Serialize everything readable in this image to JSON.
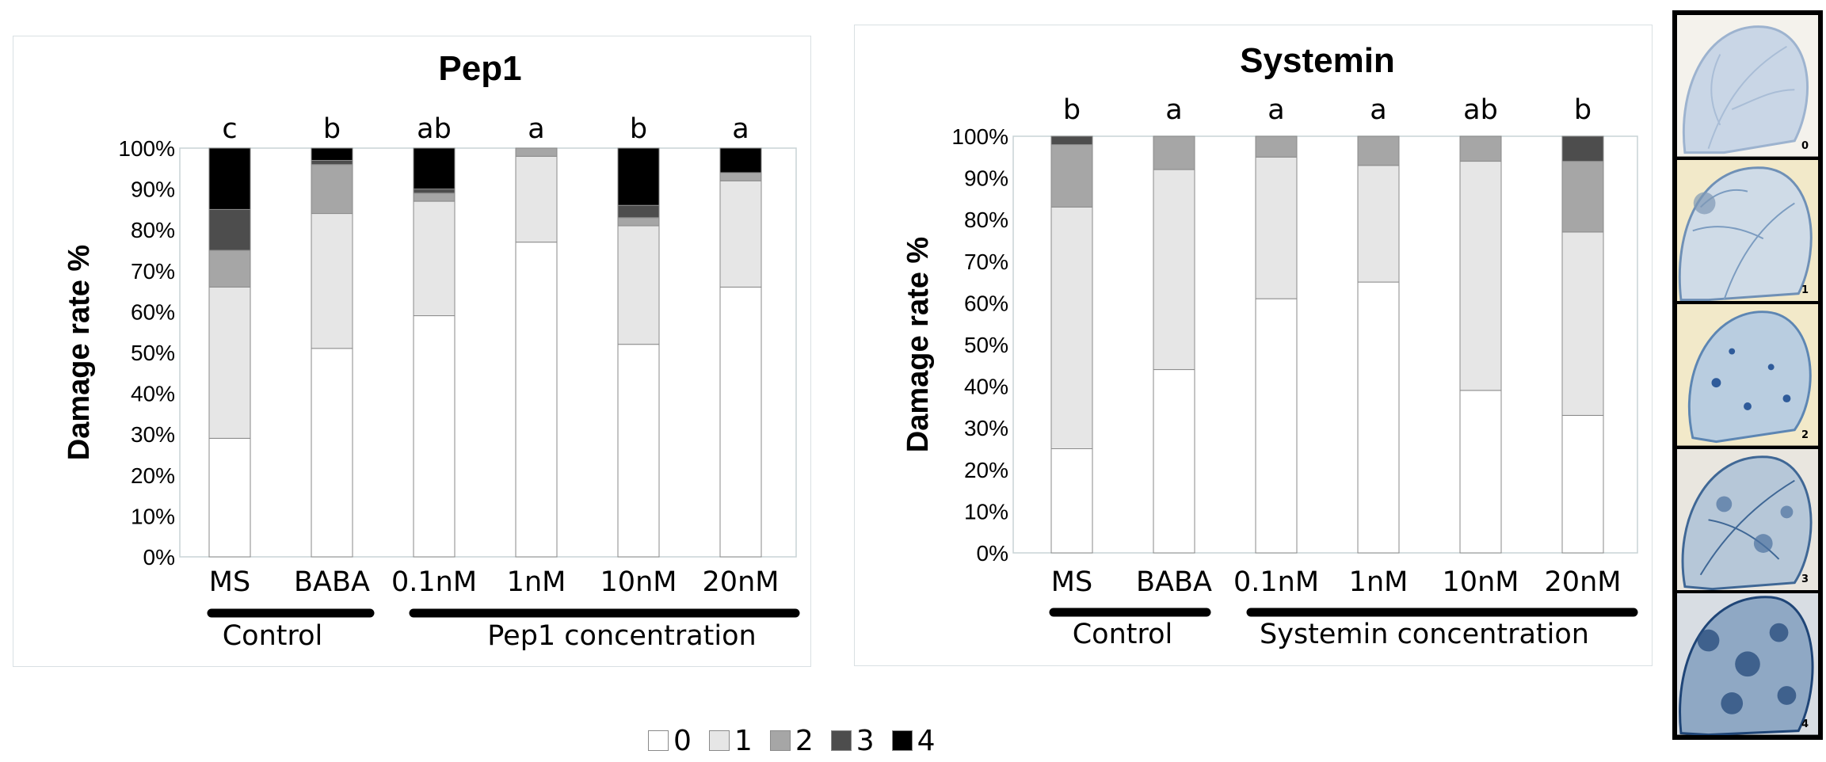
{
  "chart_data": [
    {
      "type": "bar",
      "stacked": true,
      "title": "Pep1",
      "ylabel": "Damage rate %",
      "xlabel": "",
      "ylim": [
        0,
        100
      ],
      "yticks": [
        "0%",
        "10%",
        "20%",
        "30%",
        "40%",
        "50%",
        "60%",
        "70%",
        "80%",
        "90%",
        "100%"
      ],
      "categories": [
        "MS",
        "BABA",
        "0.1nM",
        "1nM",
        "10nM",
        "20nM"
      ],
      "significance": [
        "c",
        "b",
        "ab",
        "a",
        "b",
        "a"
      ],
      "groups": [
        {
          "label": "Control",
          "categories": [
            "MS",
            "BABA"
          ]
        },
        {
          "label": "Pep1 concentration",
          "categories": [
            "0.1nM",
            "1nM",
            "10nM",
            "20nM"
          ]
        }
      ],
      "series": [
        {
          "name": "0",
          "values": [
            29,
            51,
            59,
            77,
            52,
            66
          ]
        },
        {
          "name": "1",
          "values": [
            37,
            33,
            28,
            21,
            29,
            26
          ]
        },
        {
          "name": "2",
          "values": [
            9,
            12,
            2,
            2,
            2,
            2
          ]
        },
        {
          "name": "3",
          "values": [
            10,
            1,
            1,
            0,
            3,
            0
          ]
        },
        {
          "name": "4",
          "values": [
            15,
            3,
            10,
            0,
            14,
            6
          ]
        }
      ]
    },
    {
      "type": "bar",
      "stacked": true,
      "title": "Systemin",
      "ylabel": "Damage rate %",
      "xlabel": "",
      "ylim": [
        0,
        100
      ],
      "yticks": [
        "0%",
        "10%",
        "20%",
        "30%",
        "40%",
        "50%",
        "60%",
        "70%",
        "80%",
        "90%",
        "100%"
      ],
      "categories": [
        "MS",
        "BABA",
        "0.1nM",
        "1nM",
        "10nM",
        "20nM"
      ],
      "significance": [
        "b",
        "a",
        "a",
        "a",
        "ab",
        "b"
      ],
      "groups": [
        {
          "label": "Control",
          "categories": [
            "MS",
            "BABA"
          ]
        },
        {
          "label": "Systemin concentration",
          "categories": [
            "0.1nM",
            "1nM",
            "10nM",
            "20nM"
          ]
        }
      ],
      "series": [
        {
          "name": "0",
          "values": [
            25,
            44,
            61,
            65,
            39,
            33
          ]
        },
        {
          "name": "1",
          "values": [
            58,
            48,
            34,
            28,
            55,
            44
          ]
        },
        {
          "name": "2",
          "values": [
            15,
            8,
            5,
            7,
            6,
            17
          ]
        },
        {
          "name": "3",
          "values": [
            2,
            0,
            0,
            0,
            0,
            6
          ]
        },
        {
          "name": "4",
          "values": [
            0,
            0,
            0,
            0,
            0,
            0
          ]
        }
      ]
    }
  ],
  "legend": {
    "items": [
      {
        "label": "0",
        "color": "#ffffff"
      },
      {
        "label": "1",
        "color": "#e6e6e6"
      },
      {
        "label": "2",
        "color": "#a6a6a6"
      },
      {
        "label": "3",
        "color": "#4d4d4d"
      },
      {
        "label": "4",
        "color": "#000000"
      }
    ]
  },
  "colors": {
    "bar_outline": "#8a8a8a",
    "axis": "#c8d3d6",
    "group_bar": "#000000"
  },
  "thumbnails": [
    {
      "label": "0"
    },
    {
      "label": "1"
    },
    {
      "label": "2"
    },
    {
      "label": "3"
    },
    {
      "label": "4"
    }
  ]
}
